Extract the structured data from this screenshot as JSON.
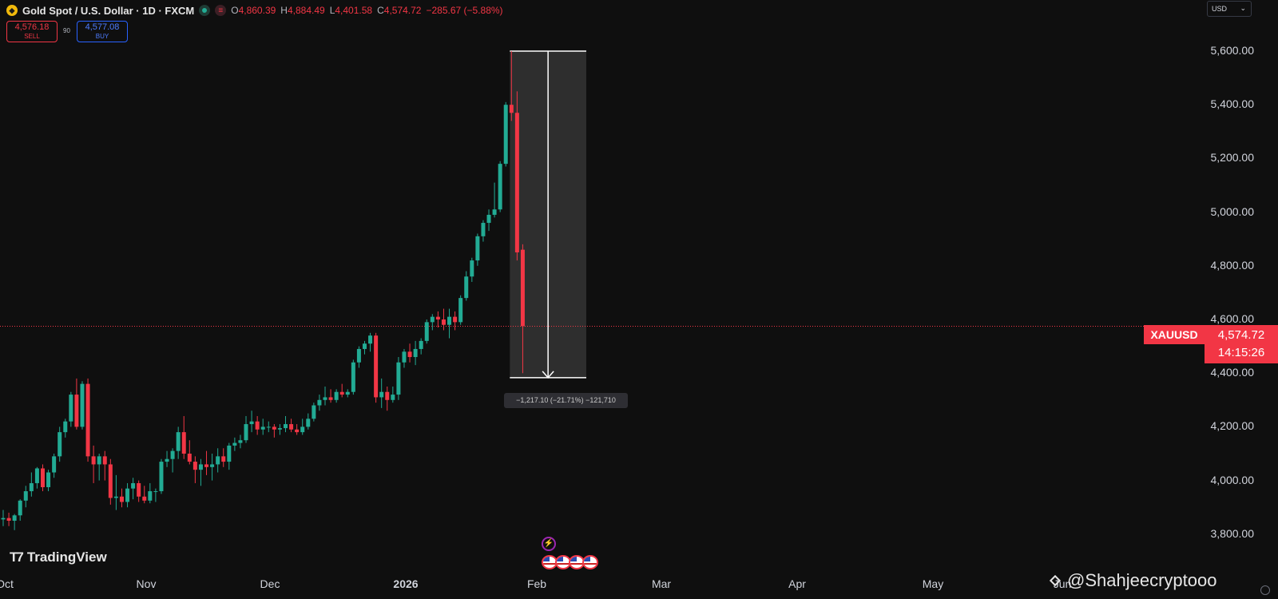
{
  "header": {
    "icon": "gold-coin-icon",
    "title": "Gold Spot / U.S. Dollar · 1D · FXCM",
    "ohlc": [
      {
        "key": "O",
        "value": "4,860.39"
      },
      {
        "key": "H",
        "value": "4,884.49"
      },
      {
        "key": "L",
        "value": "4,401.58"
      },
      {
        "key": "C",
        "value": "4,574.72"
      }
    ],
    "change": "−285.67 (−5.88%)"
  },
  "trade": {
    "sell_price": "4,576.18",
    "sell_label": "SELL",
    "spread": "90",
    "buy_price": "4,577.08",
    "buy_label": "BUY"
  },
  "currency": "USD",
  "price_tag": {
    "symbol": "XAUUSD",
    "price": "4,574.72",
    "countdown": "14:15:26"
  },
  "measure_label": "−1,217.10 (−21.71%) −121,710",
  "logo": "TradingView",
  "watermark": "@Shahjeecryptooo",
  "colors": {
    "up": "#22ab94",
    "down": "#f23645",
    "background": "#0f0f0f",
    "accent": "#2962ff"
  },
  "chart_data": {
    "type": "candlestick",
    "title": "Gold Spot / U.S. Dollar",
    "interval": "1D",
    "ylim": [
      3750,
      5700
    ],
    "y_ticks": [
      "5,600.00",
      "5,400.00",
      "5,200.00",
      "5,000.00",
      "4,800.00",
      "4,600.00",
      "4,400.00",
      "4,200.00",
      "4,000.00",
      "3,800.00"
    ],
    "x_ticks": [
      "Oct",
      "Nov",
      "Dec",
      "2026",
      "Feb",
      "Mar",
      "Apr",
      "May",
      "Jun"
    ],
    "last_price": 4574.72,
    "candles": [
      {
        "o": 3855,
        "h": 3890,
        "l": 3830,
        "c": 3860
      },
      {
        "o": 3860,
        "h": 3880,
        "l": 3830,
        "c": 3850
      },
      {
        "o": 3850,
        "h": 3875,
        "l": 3815,
        "c": 3870
      },
      {
        "o": 3870,
        "h": 3930,
        "l": 3850,
        "c": 3925
      },
      {
        "o": 3925,
        "h": 3980,
        "l": 3900,
        "c": 3960
      },
      {
        "o": 3960,
        "h": 4030,
        "l": 3940,
        "c": 3990
      },
      {
        "o": 3990,
        "h": 4050,
        "l": 3970,
        "c": 4045
      },
      {
        "o": 4045,
        "h": 4060,
        "l": 3960,
        "c": 3975
      },
      {
        "o": 3975,
        "h": 4040,
        "l": 3960,
        "c": 4030
      },
      {
        "o": 4030,
        "h": 4100,
        "l": 4010,
        "c": 4090
      },
      {
        "o": 4090,
        "h": 4200,
        "l": 4070,
        "c": 4180
      },
      {
        "o": 4180,
        "h": 4230,
        "l": 4160,
        "c": 4220
      },
      {
        "o": 4220,
        "h": 4330,
        "l": 4200,
        "c": 4320
      },
      {
        "o": 4320,
        "h": 4380,
        "l": 4190,
        "c": 4200
      },
      {
        "o": 4200,
        "h": 4370,
        "l": 4190,
        "c": 4360
      },
      {
        "o": 4360,
        "h": 4380,
        "l": 4070,
        "c": 4090
      },
      {
        "o": 4090,
        "h": 4130,
        "l": 3990,
        "c": 4060
      },
      {
        "o": 4060,
        "h": 4100,
        "l": 4000,
        "c": 4090
      },
      {
        "o": 4090,
        "h": 4110,
        "l": 4000,
        "c": 4060
      },
      {
        "o": 4060,
        "h": 4080,
        "l": 3910,
        "c": 3935
      },
      {
        "o": 3935,
        "h": 4020,
        "l": 3890,
        "c": 3940
      },
      {
        "o": 3940,
        "h": 3970,
        "l": 3900,
        "c": 3920
      },
      {
        "o": 3920,
        "h": 3990,
        "l": 3900,
        "c": 3970
      },
      {
        "o": 3970,
        "h": 4010,
        "l": 3930,
        "c": 3990
      },
      {
        "o": 3990,
        "h": 4000,
        "l": 3920,
        "c": 3940
      },
      {
        "o": 3940,
        "h": 3980,
        "l": 3915,
        "c": 3925
      },
      {
        "o": 3925,
        "h": 3990,
        "l": 3915,
        "c": 3960
      },
      {
        "o": 3960,
        "h": 3970,
        "l": 3920,
        "c": 3960
      },
      {
        "o": 3960,
        "h": 4080,
        "l": 3950,
        "c": 4070
      },
      {
        "o": 4070,
        "h": 4110,
        "l": 4050,
        "c": 4080
      },
      {
        "o": 4080,
        "h": 4120,
        "l": 4030,
        "c": 4110
      },
      {
        "o": 4110,
        "h": 4200,
        "l": 4080,
        "c": 4180
      },
      {
        "o": 4180,
        "h": 4240,
        "l": 4080,
        "c": 4100
      },
      {
        "o": 4100,
        "h": 4150,
        "l": 4060,
        "c": 4070
      },
      {
        "o": 4070,
        "h": 4090,
        "l": 3990,
        "c": 4040
      },
      {
        "o": 4040,
        "h": 4080,
        "l": 3980,
        "c": 4060
      },
      {
        "o": 4060,
        "h": 4110,
        "l": 4020,
        "c": 4050
      },
      {
        "o": 4050,
        "h": 4100,
        "l": 4000,
        "c": 4060
      },
      {
        "o": 4060,
        "h": 4120,
        "l": 4030,
        "c": 4090
      },
      {
        "o": 4090,
        "h": 4120,
        "l": 4050,
        "c": 4070
      },
      {
        "o": 4070,
        "h": 4140,
        "l": 4040,
        "c": 4130
      },
      {
        "o": 4130,
        "h": 4160,
        "l": 4110,
        "c": 4140
      },
      {
        "o": 4140,
        "h": 4170,
        "l": 4120,
        "c": 4150
      },
      {
        "o": 4150,
        "h": 4240,
        "l": 4140,
        "c": 4210
      },
      {
        "o": 4210,
        "h": 4260,
        "l": 4180,
        "c": 4220
      },
      {
        "o": 4220,
        "h": 4240,
        "l": 4170,
        "c": 4190
      },
      {
        "o": 4190,
        "h": 4230,
        "l": 4170,
        "c": 4200
      },
      {
        "o": 4200,
        "h": 4220,
        "l": 4180,
        "c": 4200
      },
      {
        "o": 4200,
        "h": 4210,
        "l": 4160,
        "c": 4190
      },
      {
        "o": 4190,
        "h": 4210,
        "l": 4170,
        "c": 4195
      },
      {
        "o": 4195,
        "h": 4240,
        "l": 4180,
        "c": 4210
      },
      {
        "o": 4210,
        "h": 4230,
        "l": 4180,
        "c": 4190
      },
      {
        "o": 4190,
        "h": 4210,
        "l": 4170,
        "c": 4180
      },
      {
        "o": 4180,
        "h": 4230,
        "l": 4170,
        "c": 4200
      },
      {
        "o": 4200,
        "h": 4250,
        "l": 4190,
        "c": 4230
      },
      {
        "o": 4230,
        "h": 4290,
        "l": 4220,
        "c": 4280
      },
      {
        "o": 4280,
        "h": 4320,
        "l": 4260,
        "c": 4300
      },
      {
        "o": 4300,
        "h": 4350,
        "l": 4280,
        "c": 4310
      },
      {
        "o": 4310,
        "h": 4340,
        "l": 4290,
        "c": 4300
      },
      {
        "o": 4300,
        "h": 4340,
        "l": 4290,
        "c": 4330
      },
      {
        "o": 4330,
        "h": 4360,
        "l": 4310,
        "c": 4320
      },
      {
        "o": 4320,
        "h": 4340,
        "l": 4310,
        "c": 4330
      },
      {
        "o": 4330,
        "h": 4450,
        "l": 4320,
        "c": 4440
      },
      {
        "o": 4440,
        "h": 4500,
        "l": 4420,
        "c": 4490
      },
      {
        "o": 4490,
        "h": 4520,
        "l": 4470,
        "c": 4510
      },
      {
        "o": 4510,
        "h": 4550,
        "l": 4480,
        "c": 4540
      },
      {
        "o": 4540,
        "h": 4550,
        "l": 4290,
        "c": 4310
      },
      {
        "o": 4310,
        "h": 4380,
        "l": 4270,
        "c": 4330
      },
      {
        "o": 4330,
        "h": 4350,
        "l": 4260,
        "c": 4300
      },
      {
        "o": 4300,
        "h": 4350,
        "l": 4290,
        "c": 4320
      },
      {
        "o": 4320,
        "h": 4460,
        "l": 4300,
        "c": 4440
      },
      {
        "o": 4440,
        "h": 4490,
        "l": 4420,
        "c": 4480
      },
      {
        "o": 4480,
        "h": 4510,
        "l": 4440,
        "c": 4460
      },
      {
        "o": 4460,
        "h": 4520,
        "l": 4430,
        "c": 4490
      },
      {
        "o": 4490,
        "h": 4530,
        "l": 4470,
        "c": 4520
      },
      {
        "o": 4520,
        "h": 4600,
        "l": 4510,
        "c": 4590
      },
      {
        "o": 4590,
        "h": 4620,
        "l": 4560,
        "c": 4610
      },
      {
        "o": 4610,
        "h": 4630,
        "l": 4570,
        "c": 4600
      },
      {
        "o": 4600,
        "h": 4640,
        "l": 4560,
        "c": 4580
      },
      {
        "o": 4580,
        "h": 4640,
        "l": 4530,
        "c": 4610
      },
      {
        "o": 4610,
        "h": 4630,
        "l": 4560,
        "c": 4590
      },
      {
        "o": 4590,
        "h": 4690,
        "l": 4580,
        "c": 4680
      },
      {
        "o": 4680,
        "h": 4780,
        "l": 4670,
        "c": 4760
      },
      {
        "o": 4760,
        "h": 4830,
        "l": 4740,
        "c": 4820
      },
      {
        "o": 4820,
        "h": 4920,
        "l": 4800,
        "c": 4910
      },
      {
        "o": 4910,
        "h": 4970,
        "l": 4890,
        "c": 4960
      },
      {
        "o": 4960,
        "h": 5010,
        "l": 4930,
        "c": 4990
      },
      {
        "o": 4990,
        "h": 5110,
        "l": 4980,
        "c": 5010
      },
      {
        "o": 5010,
        "h": 5190,
        "l": 5000,
        "c": 5180
      },
      {
        "o": 5180,
        "h": 5410,
        "l": 5170,
        "c": 5400
      },
      {
        "o": 5400,
        "h": 5600,
        "l": 5340,
        "c": 5370
      },
      {
        "o": 5370,
        "h": 5450,
        "l": 4820,
        "c": 4850
      },
      {
        "o": 4860,
        "h": 4880,
        "l": 4400,
        "c": 4575
      }
    ],
    "measure": {
      "from": 5600,
      "to": 4383,
      "delta": "−1,217.10",
      "percent": "−21.71%",
      "ticks": "−121,710"
    }
  }
}
